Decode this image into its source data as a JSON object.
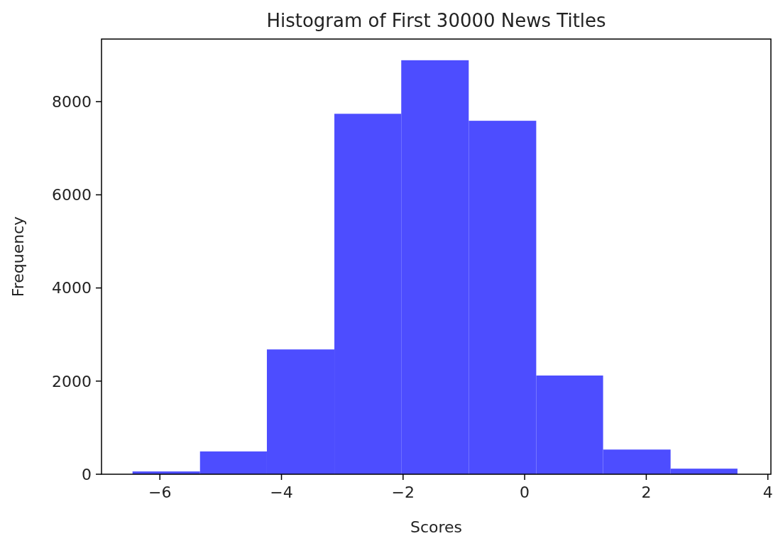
{
  "chart_data": {
    "type": "histogram",
    "title": "Histogram of First 30000 News Titles",
    "xlabel": "Scores",
    "ylabel": "Frequency",
    "bins": [
      -6.45,
      -5.34,
      -4.24,
      -3.13,
      -2.03,
      -0.92,
      0.19,
      1.29,
      2.4,
      3.5
    ],
    "values": [
      60,
      490,
      2680,
      7740,
      8890,
      7590,
      2120,
      530,
      120
    ],
    "color": "#4d4dff",
    "xlim": [
      -6.96,
      4.05
    ],
    "xticks": [
      {
        "value": -6,
        "label": "−6"
      },
      {
        "value": -4,
        "label": "−4"
      },
      {
        "value": -2,
        "label": "−2"
      },
      0,
      2,
      4
    ],
    "ylim": [
      0,
      9345
    ],
    "yticks": [
      0,
      2000,
      4000,
      6000,
      8000
    ],
    "grid": false
  }
}
